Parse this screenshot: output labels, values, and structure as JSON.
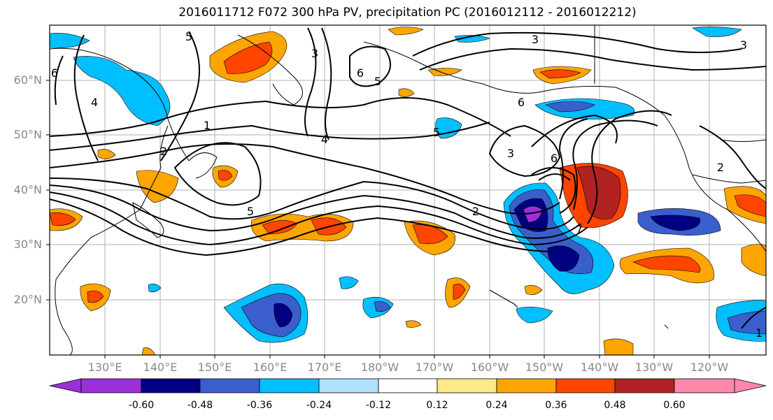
{
  "title": "2016011712 F072 300 hPa PV, precipitation PC (2016012112 - 2016012212)",
  "lat_labels": [
    "60°N",
    "50°N",
    "40°N",
    "30°N",
    "20°N"
  ],
  "lon_labels": [
    "130°E",
    "140°E",
    "150°E",
    "160°E",
    "170°E",
    "180°W",
    "170°W",
    "160°W",
    "150°W",
    "140°W",
    "130°W",
    "120°W"
  ],
  "contour_labels": [
    "5",
    "3",
    "6",
    "4",
    "1",
    "2",
    "5",
    "3",
    "6",
    "5",
    "4",
    "2",
    "6",
    "5",
    "3",
    "6",
    "7",
    "2",
    "3",
    "1"
  ],
  "colorbar": {
    "tick_labels": [
      "-0.60",
      "-0.48",
      "-0.36",
      "-0.24",
      "-0.12",
      "0.12",
      "0.24",
      "0.36",
      "0.48",
      "0.60"
    ],
    "colors": [
      "#9b30d9",
      "#000080",
      "#3a5fcd",
      "#00bfff",
      "#b0e2ff",
      "#ffffff",
      "#ffe98a",
      "#ffa500",
      "#ff4500",
      "#b22222",
      "#ff88aa"
    ]
  },
  "map_data": {
    "domain": {
      "lat_range": [
        10,
        70
      ],
      "lon_range": [
        "120°E",
        "110°W"
      ]
    },
    "fields": [
      "300 hPa PV (contours)",
      "precipitation PC (shaded)"
    ]
  }
}
